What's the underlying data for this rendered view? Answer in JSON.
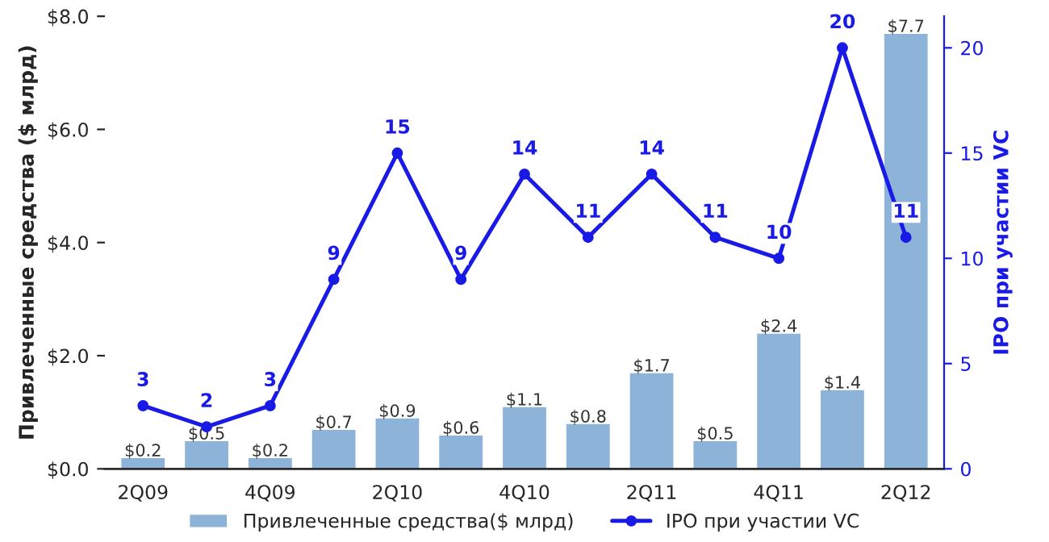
{
  "chart_data": {
    "type": "bar",
    "categories": [
      "2Q09",
      null,
      "4Q09",
      null,
      "2Q10",
      null,
      "4Q10",
      null,
      "2Q11",
      null,
      "4Q11",
      null,
      "2Q12"
    ],
    "ylabel": "Привлеченные средства ($ млрд)",
    "y2label": "IPO при участии VC",
    "ylim": [
      0,
      8
    ],
    "yticks": [
      {
        "value": 0,
        "label": "$0.0"
      },
      {
        "value": 2,
        "label": "$2.0"
      },
      {
        "value": 4,
        "label": "$4.0"
      },
      {
        "value": 6,
        "label": "$6.0"
      },
      {
        "value": 8,
        "label": "$8.0"
      }
    ],
    "y2lim": [
      0,
      21.5
    ],
    "y2ticks": [
      0,
      5,
      10,
      15,
      20
    ],
    "series": [
      {
        "name": "Привлеченные средства($ млрд)",
        "type": "bar",
        "color": "#8db3d9",
        "values": [
          0.2,
          0.5,
          0.2,
          0.7,
          0.9,
          0.6,
          1.1,
          0.8,
          1.7,
          0.5,
          2.4,
          1.4,
          7.7
        ],
        "value_labels": [
          "$0.2",
          "$0.5",
          "$0.2",
          "$0.7",
          "$0.9",
          "$0.6",
          "$1.1",
          "$0.8",
          "$1.7",
          "$0.5",
          "$2.4",
          "$1.4",
          "$7.7"
        ]
      },
      {
        "name": "IPO при участии VC",
        "type": "line",
        "axis": "y2",
        "color": "#1a1ae6",
        "marker": "circle",
        "values": [
          3,
          2,
          3,
          9,
          15,
          9,
          14,
          11,
          14,
          11,
          10,
          20,
          11
        ],
        "value_labels": [
          "3",
          "2",
          "3",
          "9",
          "15",
          "9",
          "14",
          "11",
          "14",
          "11",
          "10",
          "20",
          "11"
        ]
      }
    ],
    "legend": "bottom",
    "grid": false
  }
}
